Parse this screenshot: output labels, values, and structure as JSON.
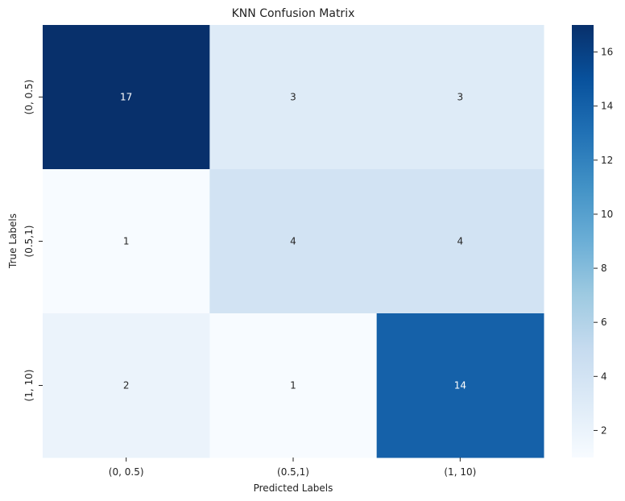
{
  "chart_data": {
    "type": "heatmap",
    "title": "KNN Confusion Matrix",
    "xlabel": "Predicted Labels",
    "ylabel": "True Labels",
    "x_categories": [
      "(0, 0.5)",
      "(0.5,1)",
      "(1, 10)"
    ],
    "y_categories": [
      "(0, 0.5)",
      "(0.5,1)",
      "(1, 10)"
    ],
    "values": [
      [
        17,
        3,
        3
      ],
      [
        1,
        4,
        4
      ],
      [
        2,
        1,
        14
      ]
    ],
    "colormap": "Blues",
    "color_range": [
      1,
      17
    ],
    "colorbar_ticks": [
      2,
      4,
      6,
      8,
      10,
      12,
      14,
      16
    ],
    "colors": {
      "low": "#f7fbff",
      "high": "#08306b"
    },
    "annotations_shown": true,
    "legend": "colorbar-right"
  }
}
